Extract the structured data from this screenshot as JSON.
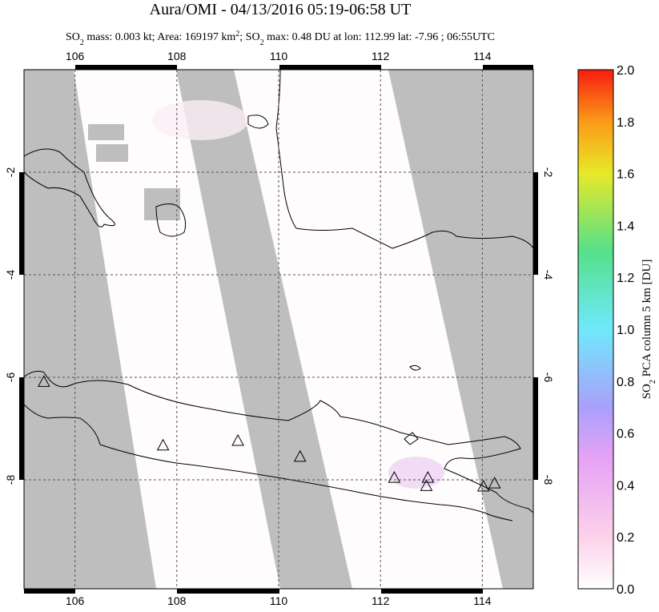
{
  "title": "Aura/OMI - 04/13/2016 05:19-06:58 UT",
  "subtitle": [
    "SO",
    "2",
    " mass: 0.003 kt; Area: 169197 km",
    "2",
    "; SO",
    "2",
    " max: 0.48 DU at lon: 112.99 lat: -7.96 ; 06:55UTC"
  ],
  "map": {
    "lonlim": [
      105,
      115
    ],
    "latlim": [
      0,
      -10.125
    ],
    "lon_ticks": [
      106,
      108,
      110,
      112,
      114
    ],
    "lat_ticks": [
      -2,
      -4,
      -6,
      -8
    ],
    "volcanoes": {
      "lon": [
        105.39,
        107.73,
        109.2,
        110.42,
        112.27,
        112.93,
        112.9,
        114.02,
        114.24
      ],
      "lat": [
        -6.1,
        -7.34,
        -7.25,
        -7.56,
        -7.97,
        -7.97,
        -8.13,
        -8.14,
        -8.08
      ]
    }
  },
  "colorbar": {
    "label": [
      "SO",
      "2",
      " PCA column 5 km [DU]"
    ],
    "lim": [
      0,
      2
    ],
    "ticks": [
      {
        "value": 0,
        "label": "0.0"
      },
      {
        "value": 0.2,
        "label": "0.2"
      },
      {
        "value": 0.4,
        "label": "0.4"
      },
      {
        "value": 0.6,
        "label": "0.6"
      },
      {
        "value": 0.8,
        "label": "0.8"
      },
      {
        "value": 1,
        "label": "1.0"
      },
      {
        "value": 1.2,
        "label": "1.2"
      },
      {
        "value": 1.4,
        "label": "1.4"
      },
      {
        "value": 1.6,
        "label": "1.6"
      },
      {
        "value": 1.8,
        "label": "1.8"
      },
      {
        "value": 2,
        "label": "2.0"
      }
    ]
  }
}
